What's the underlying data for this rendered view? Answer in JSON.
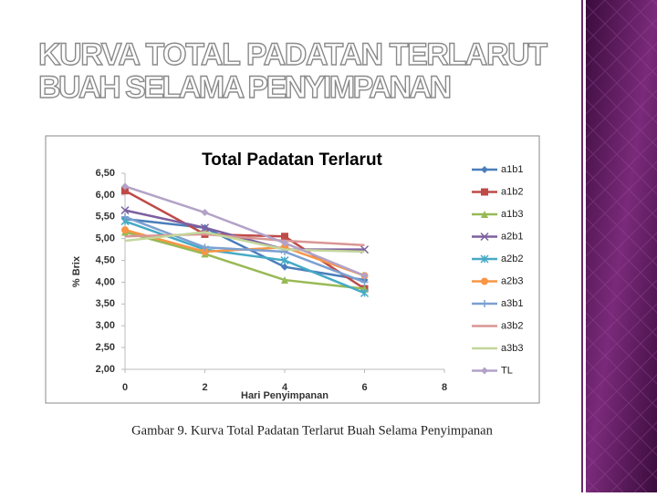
{
  "slide_title": [
    "KURVA TOTAL PADATAN TERLARUT",
    "BUAH SELAMA PENYIMPANAN"
  ],
  "chart_data": {
    "type": "line",
    "title": "Total Padatan Terlarut",
    "x_label": "Hari Penyimpanan",
    "y_label": "% Brix",
    "x": [
      0,
      2,
      4,
      6
    ],
    "xlim": [
      0,
      8
    ],
    "xticks": [
      0,
      2,
      4,
      6,
      8
    ],
    "ylim": [
      2,
      6.5
    ],
    "yticks": [
      {
        "value": 2,
        "label": "2,00"
      },
      {
        "value": 2.5,
        "label": "2,50"
      },
      {
        "value": 3,
        "label": "3,00"
      },
      {
        "value": 3.5,
        "label": "3,50"
      },
      {
        "value": 4,
        "label": "4,00"
      },
      {
        "value": 4.5,
        "label": "4,50"
      },
      {
        "value": 5,
        "label": "5,00"
      },
      {
        "value": 5.5,
        "label": "5,50"
      },
      {
        "value": 6,
        "label": "6,00"
      },
      {
        "value": 6.5,
        "label": "6,50"
      }
    ],
    "grid": false,
    "legend": "right",
    "series": [
      {
        "name": "a1b1",
        "color": "#4a7ebb",
        "marker": "diamond",
        "values": [
          5.45,
          5.25,
          4.35,
          4.05
        ]
      },
      {
        "name": "a1b2",
        "color": "#be4b48",
        "marker": "square",
        "values": [
          6.1,
          5.1,
          5.05,
          3.85
        ]
      },
      {
        "name": "a1b3",
        "color": "#98b954",
        "marker": "triangle",
        "values": [
          5.15,
          4.65,
          4.05,
          3.85
        ]
      },
      {
        "name": "a2b1",
        "color": "#7d60a0",
        "marker": "x",
        "values": [
          5.65,
          5.25,
          4.75,
          4.75
        ]
      },
      {
        "name": "a2b2",
        "color": "#46aac5",
        "marker": "star",
        "values": [
          5.4,
          4.75,
          4.5,
          3.75
        ]
      },
      {
        "name": "a2b3",
        "color": "#f79646",
        "marker": "circle",
        "values": [
          5.2,
          4.7,
          4.8,
          4.15
        ]
      },
      {
        "name": "a3b1",
        "color": "#7ba0d2",
        "marker": "plus",
        "values": [
          5.5,
          4.8,
          4.7,
          4.0
        ]
      },
      {
        "name": "a3b2",
        "color": "#d99694",
        "marker": "none",
        "values": [
          5.05,
          5.1,
          4.95,
          4.85
        ]
      },
      {
        "name": "a3b3",
        "color": "#c3d69b",
        "marker": "none",
        "values": [
          4.95,
          5.15,
          4.75,
          4.7
        ]
      },
      {
        "name": "TL",
        "color": "#b3a2c7",
        "marker": "diamond",
        "values": [
          6.2,
          5.6,
          4.9,
          4.15
        ]
      }
    ]
  },
  "caption": "Gambar 9. Kurva Total Padatan Terlarut Buah Selama Penyimpanan"
}
